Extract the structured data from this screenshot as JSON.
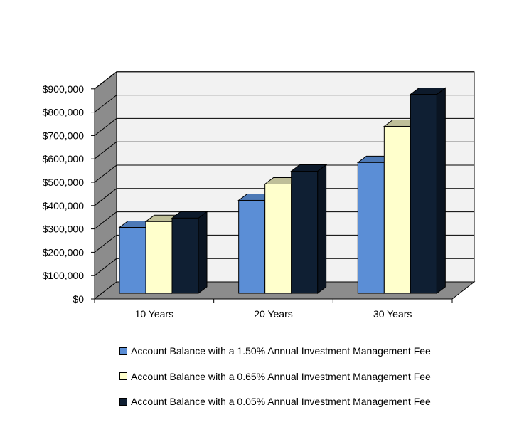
{
  "chart_data": {
    "type": "bar",
    "categories": [
      "10 Years",
      "20 Years",
      "30 Years"
    ],
    "series": [
      {
        "name": "Account Balance with a 1.50% Annual Investment Management Fee",
        "color": "#5b8ed6",
        "values": [
          282000,
          398000,
          560000
        ]
      },
      {
        "name": "Account Balance with a 0.65% Annual Investment Management Fee",
        "color": "#ffffcc",
        "values": [
          307000,
          468000,
          715000
        ]
      },
      {
        "name": "Account Balance with a 0.05% Annual Investment Management Fee",
        "color": "#0f1f33",
        "values": [
          322000,
          523000,
          852000
        ]
      }
    ],
    "y_ticks": [
      "$0",
      "$100,000",
      "$200,000",
      "$300,000",
      "$400,000",
      "$500,000",
      "$600,000",
      "$700,000",
      "$800,000",
      "$900,000"
    ],
    "ylim": [
      0,
      900000
    ],
    "title": "",
    "xlabel": "",
    "ylabel": "",
    "grid": true,
    "legend_position": "bottom"
  }
}
